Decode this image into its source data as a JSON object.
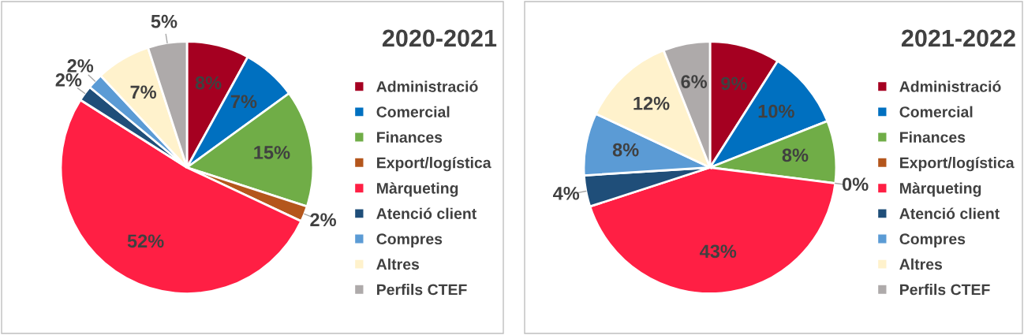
{
  "chart_data": [
    {
      "type": "pie",
      "title": "2020-2021",
      "legend": "right",
      "categories": [
        "Administració",
        "Comercial",
        "Finances",
        "Export/logística",
        "Màrqueting",
        "Atenció client",
        "Compres",
        "Altres",
        "Perfils CTEF"
      ],
      "values": [
        8,
        7,
        15,
        2,
        52,
        2,
        2,
        7,
        5
      ],
      "value_labels": [
        "8%",
        "7%",
        "15%",
        "2%",
        "52%",
        "2%",
        "2%",
        "7%",
        "5%"
      ],
      "colors": [
        "#a50021",
        "#0070c0",
        "#70ad47",
        "#b4561c",
        "#ff1f44",
        "#1f4e79",
        "#5b9bd5",
        "#fff2cc",
        "#aeaaaa"
      ]
    },
    {
      "type": "pie",
      "title": "2021-2022",
      "legend": "right",
      "categories": [
        "Administració",
        "Comercial",
        "Finances",
        "Export/logística",
        "Màrqueting",
        "Atenció client",
        "Compres",
        "Altres",
        "Perfils CTEF"
      ],
      "values": [
        9,
        10,
        8,
        0,
        43,
        4,
        8,
        12,
        6
      ],
      "value_labels": [
        "9%",
        "10%",
        "8%",
        "0%",
        "43%",
        "4%",
        "8%",
        "12%",
        "6%"
      ],
      "colors": [
        "#a50021",
        "#0070c0",
        "#70ad47",
        "#b4561c",
        "#ff1f44",
        "#1f4e79",
        "#5b9bd5",
        "#fff2cc",
        "#aeaaaa"
      ]
    }
  ]
}
